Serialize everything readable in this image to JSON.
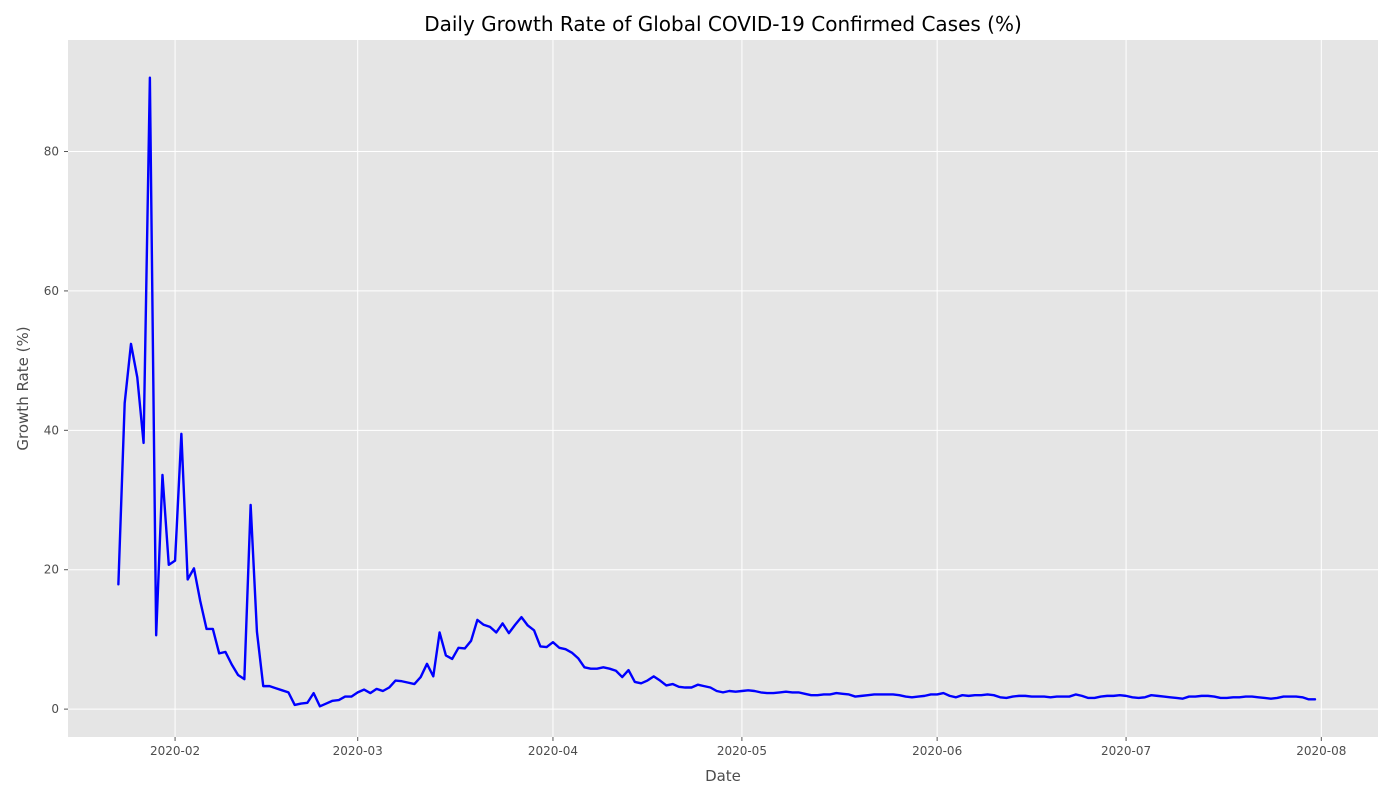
{
  "chart_data": {
    "type": "line",
    "title": "Daily Growth Rate of Global COVID-19 Confirmed Cases (%)",
    "xlabel": "Date",
    "ylabel": "Growth Rate (%)",
    "x_start": "2020-01-23",
    "grid": true,
    "legend": "none",
    "xlim": [
      "2020-01-15",
      "2020-08-10"
    ],
    "ylim": [
      -4,
      96
    ],
    "x_ticks": [
      "2020-02-01",
      "2020-03-01",
      "2020-04-01",
      "2020-05-01",
      "2020-06-01",
      "2020-07-01",
      "2020-08-01"
    ],
    "x_tick_labels": [
      "2020-02",
      "2020-03",
      "2020-04",
      "2020-05",
      "2020-06",
      "2020-07",
      "2020-08"
    ],
    "y_ticks": [
      0,
      20,
      40,
      60,
      80
    ],
    "colors": {
      "line": "#0000ff",
      "plot_background": "#e5e5e5",
      "grid": "#ffffff"
    },
    "series": [
      {
        "values": [
          17.9,
          43.9,
          52.4,
          47.6,
          38.2,
          90.6,
          10.6,
          33.6,
          20.7,
          21.3,
          39.5,
          18.6,
          20.2,
          15.5,
          11.5,
          11.5,
          8.0,
          8.2,
          6.4,
          4.9,
          4.3,
          29.3,
          11.1,
          3.3,
          3.3,
          3.0,
          2.7,
          2.4,
          0.6,
          0.8,
          0.9,
          2.3,
          0.4,
          0.8,
          1.2,
          1.3,
          1.8,
          1.8,
          2.4,
          2.8,
          2.3,
          2.9,
          2.6,
          3.1,
          4.1,
          4.0,
          3.8,
          3.6,
          4.6,
          6.5,
          4.7,
          11.0,
          7.7,
          7.2,
          8.8,
          8.7,
          9.8,
          12.8,
          12.1,
          11.8,
          11.0,
          12.3,
          10.9,
          12.1,
          13.2,
          12.0,
          11.3,
          9.0,
          8.9,
          9.6,
          8.8,
          8.6,
          8.1,
          7.3,
          6.0,
          5.8,
          5.8,
          6.0,
          5.8,
          5.5,
          4.6,
          5.6,
          3.9,
          3.7,
          4.1,
          4.7,
          4.1,
          3.4,
          3.6,
          3.2,
          3.1,
          3.1,
          3.5,
          3.3,
          3.1,
          2.6,
          2.4,
          2.6,
          2.5,
          2.6,
          2.7,
          2.6,
          2.4,
          2.3,
          2.3,
          2.4,
          2.5,
          2.4,
          2.4,
          2.2,
          2.0,
          2.0,
          2.1,
          2.1,
          2.3,
          2.2,
          2.1,
          1.8,
          1.9,
          2.0,
          2.1,
          2.1,
          2.1,
          2.1,
          2.0,
          1.8,
          1.7,
          1.8,
          1.9,
          2.1,
          2.1,
          2.3,
          1.9,
          1.7,
          2.0,
          1.9,
          2.0,
          2.0,
          2.1,
          2.0,
          1.7,
          1.6,
          1.8,
          1.9,
          1.9,
          1.8,
          1.8,
          1.8,
          1.7,
          1.8,
          1.8,
          1.8,
          2.1,
          1.9,
          1.6,
          1.6,
          1.8,
          1.9,
          1.9,
          2.0,
          1.9,
          1.7,
          1.6,
          1.7,
          2.0,
          1.9,
          1.8,
          1.7,
          1.6,
          1.5,
          1.8,
          1.8,
          1.9,
          1.9,
          1.8,
          1.6,
          1.6,
          1.7,
          1.7,
          1.8,
          1.8,
          1.7,
          1.6,
          1.5,
          1.6,
          1.8,
          1.8,
          1.8,
          1.7,
          1.4,
          1.4
        ]
      }
    ]
  }
}
